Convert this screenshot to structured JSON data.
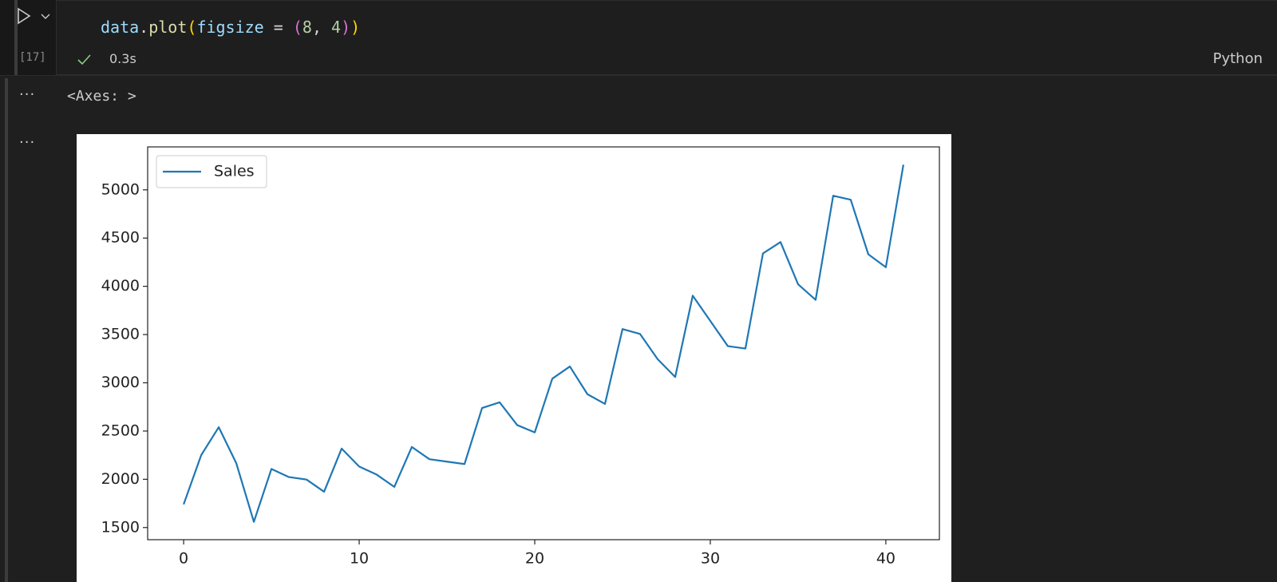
{
  "cell": {
    "code_tokens": [
      "data",
      ".",
      "plot",
      "(",
      "figsize",
      " = ",
      "(",
      "8",
      ", ",
      "4",
      ")",
      ")"
    ],
    "execution_count": "[17]",
    "duration": "0.3s",
    "language": "Python"
  },
  "output": {
    "text": "<Axes: >"
  },
  "chart_data": {
    "type": "line",
    "x": [
      0,
      1,
      2,
      3,
      4,
      5,
      6,
      7,
      8,
      9,
      10,
      11,
      12,
      13,
      14,
      15,
      16,
      17,
      18,
      19,
      20,
      21,
      22,
      23,
      24,
      25,
      26,
      27,
      28,
      29,
      30,
      31,
      32,
      33,
      34,
      35,
      36,
      37,
      38,
      39,
      40,
      41
    ],
    "series": [
      {
        "name": "Sales",
        "color": "#1f77b4",
        "values": [
          1740,
          2250,
          2540,
          2166,
          1559,
          2107,
          2023,
          1997,
          1871,
          2318,
          2132,
          2048,
          1921,
          2335,
          2208,
          2183,
          2158,
          2739,
          2798,
          2562,
          2486,
          3043,
          3169,
          2882,
          2781,
          3557,
          3506,
          3245,
          3060,
          3903,
          3641,
          3380,
          3355,
          4341,
          4459,
          4021,
          3860,
          4939,
          4897,
          4332,
          4198,
          5260
        ]
      }
    ],
    "xlim": [
      -2.05,
      43.05
    ],
    "ylim": [
      1374,
      5445
    ],
    "xticks": [
      0,
      10,
      20,
      30,
      40
    ],
    "yticks": [
      1500,
      2000,
      2500,
      3000,
      3500,
      4000,
      4500,
      5000
    ],
    "legend": "upper left"
  }
}
